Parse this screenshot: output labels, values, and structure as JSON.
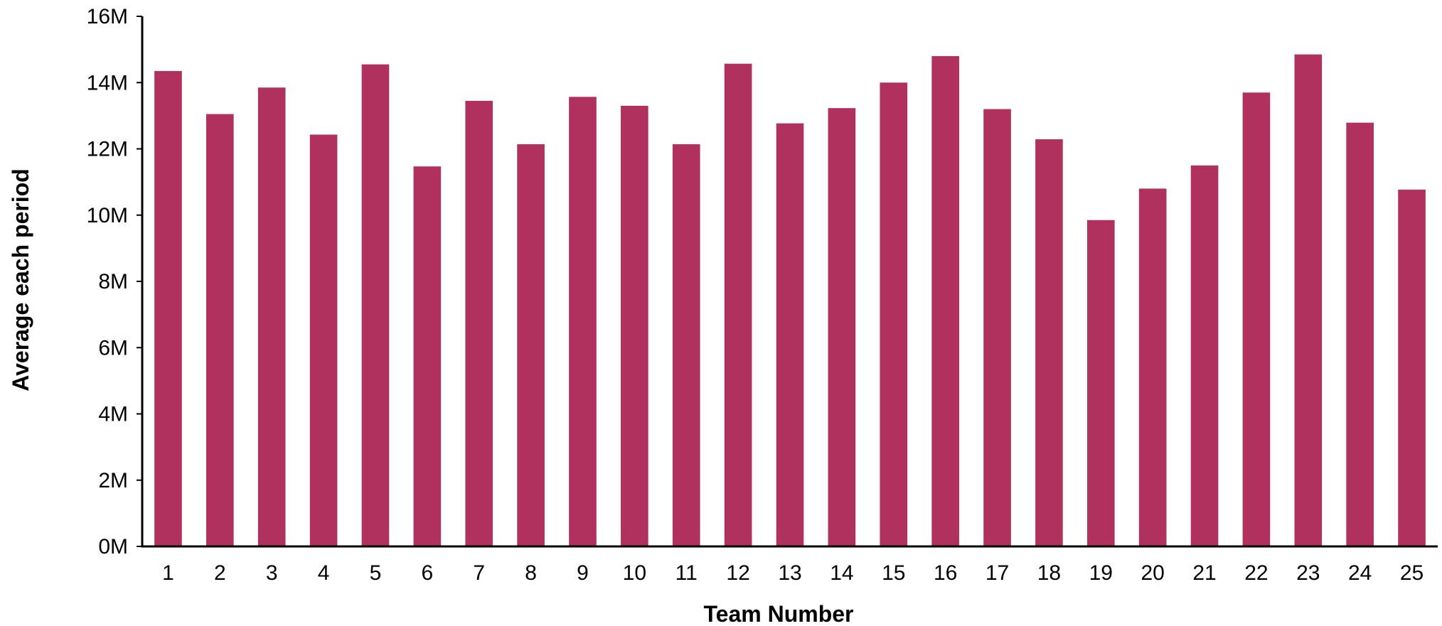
{
  "chart_data": {
    "type": "bar",
    "title": "",
    "xlabel": "Team Number",
    "ylabel": "Average each period",
    "categories": [
      "1",
      "2",
      "3",
      "4",
      "5",
      "6",
      "7",
      "8",
      "9",
      "10",
      "11",
      "12",
      "13",
      "14",
      "15",
      "16",
      "17",
      "18",
      "19",
      "20",
      "21",
      "22",
      "23",
      "24",
      "25"
    ],
    "values": [
      14350000,
      13050000,
      13850000,
      12430000,
      14550000,
      11470000,
      13450000,
      12140000,
      13570000,
      13300000,
      12140000,
      14570000,
      12770000,
      13230000,
      14000000,
      14800000,
      13200000,
      12290000,
      9850000,
      10800000,
      11500000,
      13700000,
      14850000,
      12790000,
      10770000
    ],
    "ylim": [
      0,
      16000000
    ],
    "yticks": [
      0,
      2000000,
      4000000,
      6000000,
      8000000,
      10000000,
      12000000,
      14000000,
      16000000
    ],
    "ytick_labels": [
      "0M",
      "2M",
      "4M",
      "6M",
      "8M",
      "10M",
      "12M",
      "14M",
      "16M"
    ],
    "grid": false,
    "legend": "none",
    "bar_color": "#B0305E",
    "axis_color": "#000000"
  }
}
